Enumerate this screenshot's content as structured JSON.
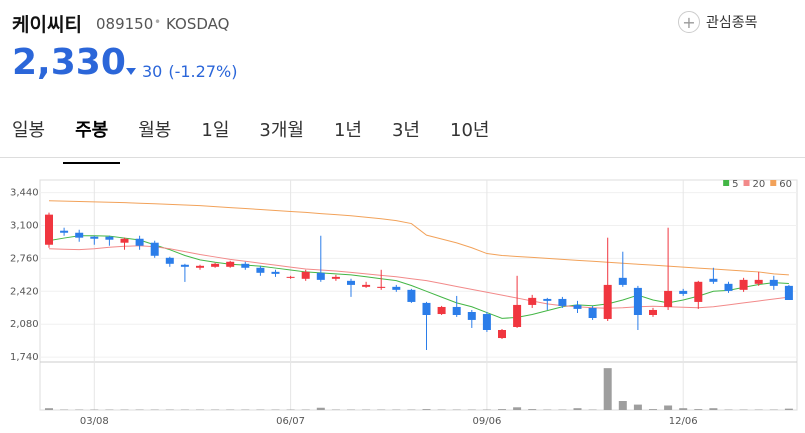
{
  "header": {
    "name": "케이씨티",
    "code": "089150",
    "market": "KOSDAQ",
    "button": "관심종목",
    "price": "2,330",
    "change": "30",
    "change_rate": "(-1.27%)"
  },
  "tabs": [
    "일봉",
    "주봉",
    "월봉",
    "1일",
    "3개월",
    "1년",
    "3년",
    "10년"
  ],
  "selected_tab": 1,
  "chart_data": {
    "type": "candlestick",
    "categories": [
      null,
      null,
      null,
      "03/08",
      null,
      null,
      null,
      null,
      null,
      null,
      null,
      null,
      null,
      null,
      null,
      null,
      "06/07",
      null,
      null,
      null,
      null,
      null,
      null,
      null,
      null,
      null,
      null,
      null,
      null,
      "09/06",
      null,
      null,
      null,
      null,
      null,
      null,
      null,
      null,
      null,
      null,
      null,
      null,
      "12/06",
      null,
      null,
      null,
      null,
      null,
      null,
      null
    ],
    "open": [
      2901,
      3046,
      3025,
      2984,
      2984,
      2922,
      2963,
      2922,
      2766,
      2694,
      2663,
      2673,
      2673,
      2704,
      2663,
      2621,
      2559,
      2549,
      2611,
      2549,
      2528,
      2466,
      2455,
      2466,
      2435,
      2300,
      2185,
      2258,
      2206,
      2185,
      1937,
      2051,
      2279,
      2341,
      2341,
      2279,
      2248,
      2134,
      2559,
      2455,
      2175,
      2258,
      2424,
      2310,
      2549,
      2497,
      2435,
      2497,
      2538,
      2476
    ],
    "high": [
      3233,
      3077,
      3056,
      2994,
      2994,
      2974,
      2994,
      2943,
      2777,
      2704,
      2694,
      2714,
      2735,
      2725,
      2683,
      2642,
      2580,
      2642,
      2994,
      2590,
      2549,
      2518,
      2642,
      2486,
      2445,
      2310,
      2269,
      2372,
      2227,
      2206,
      2030,
      2580,
      2383,
      2352,
      2362,
      2321,
      2269,
      2974,
      2829,
      2476,
      2248,
      3077,
      2445,
      2528,
      2663,
      2518,
      2559,
      2621,
      2580,
      2486
    ],
    "low": [
      2870,
      2994,
      2932,
      2901,
      2891,
      2849,
      2849,
      2766,
      2673,
      2517,
      2642,
      2663,
      2663,
      2642,
      2580,
      2569,
      2549,
      2528,
      2518,
      2528,
      2362,
      2455,
      2435,
      2414,
      2300,
      1813,
      2175,
      2155,
      2041,
      2000,
      1927,
      2041,
      2248,
      2227,
      2248,
      2196,
      2124,
      2113,
      2466,
      2020,
      2155,
      2227,
      2372,
      2238,
      2497,
      2403,
      2414,
      2476,
      2435,
      2330
    ],
    "close": [
      3212,
      3025,
      2974,
      2963,
      2953,
      2963,
      2891,
      2787,
      2704,
      2673,
      2683,
      2704,
      2725,
      2663,
      2611,
      2600,
      2569,
      2621,
      2538,
      2569,
      2486,
      2486,
      2466,
      2435,
      2310,
      2175,
      2258,
      2175,
      2124,
      2020,
      2020,
      2279,
      2352,
      2321,
      2269,
      2238,
      2144,
      2486,
      2486,
      2175,
      2227,
      2424,
      2393,
      2518,
      2518,
      2424,
      2538,
      2538,
      2476,
      2330
    ],
    "up_color": "#f0363f",
    "down_color": "#2b7de9",
    "series": [
      {
        "name": "5",
        "color": "#43b645",
        "values": [
          2943,
          2970,
          2994,
          2994,
          2990,
          2970,
          2950,
          2900,
          2850,
          2790,
          2745,
          2720,
          2700,
          2690,
          2680,
          2660,
          2640,
          2620,
          2610,
          2600,
          2590,
          2570,
          2550,
          2530,
          2480,
          2420,
          2360,
          2300,
          2260,
          2200,
          2140,
          2150,
          2180,
          2220,
          2260,
          2280,
          2270,
          2290,
          2330,
          2380,
          2330,
          2300,
          2330,
          2370,
          2420,
          2430,
          2460,
          2490,
          2510,
          2500
        ]
      },
      {
        "name": "20",
        "color": "#f28a8a",
        "values": [
          2860,
          2855,
          2850,
          2860,
          2875,
          2885,
          2890,
          2880,
          2860,
          2830,
          2800,
          2775,
          2750,
          2730,
          2710,
          2690,
          2670,
          2650,
          2640,
          2630,
          2615,
          2600,
          2585,
          2570,
          2550,
          2530,
          2500,
          2470,
          2440,
          2410,
          2380,
          2350,
          2320,
          2290,
          2270,
          2260,
          2250,
          2245,
          2250,
          2260,
          2265,
          2260,
          2255,
          2250,
          2260,
          2280,
          2300,
          2320,
          2340,
          2360
        ]
      },
      {
        "name": "60",
        "color": "#f2a25a",
        "values": [
          3356,
          3352,
          3348,
          3344,
          3340,
          3336,
          3330,
          3324,
          3318,
          3312,
          3305,
          3295,
          3285,
          3275,
          3265,
          3255,
          3245,
          3235,
          3222,
          3212,
          3200,
          3185,
          3170,
          3150,
          3120,
          3000,
          2960,
          2920,
          2870,
          2810,
          2790,
          2780,
          2770,
          2760,
          2750,
          2740,
          2730,
          2720,
          2710,
          2700,
          2690,
          2680,
          2670,
          2660,
          2650,
          2640,
          2630,
          2620,
          2600,
          2590
        ]
      }
    ],
    "volume": [
      4,
      1,
      1,
      1,
      1,
      1,
      1,
      1,
      1,
      1,
      1,
      1,
      1,
      1,
      1,
      1,
      1,
      1,
      5,
      1,
      1,
      1,
      1,
      1,
      1,
      2,
      1,
      1,
      1,
      1,
      2,
      6,
      2,
      1,
      1,
      4,
      1,
      93,
      20,
      12,
      2,
      10,
      4,
      2,
      4,
      1,
      1,
      1,
      1,
      3
    ],
    "volume_color": "#9e9e9e",
    "volume_ylim": [
      0,
      100
    ],
    "ylim": [
      1710,
      3570
    ],
    "yticks": [
      {
        "value": 1740,
        "label": "1,740"
      },
      {
        "value": 2080,
        "label": "2,080"
      },
      {
        "value": 2420,
        "label": "2,420"
      },
      {
        "value": 2760,
        "label": "2,760"
      },
      {
        "value": 3100,
        "label": "3,100"
      },
      {
        "value": 3440,
        "label": "3,440"
      }
    ],
    "grid": true,
    "legend": "top-right"
  }
}
